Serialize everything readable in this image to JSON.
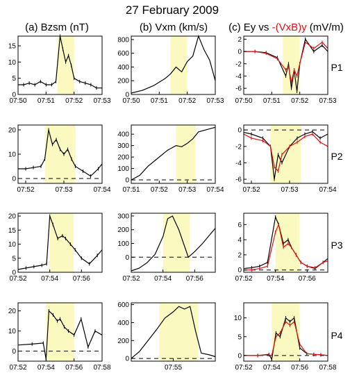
{
  "figure": {
    "title": "27 February 2009",
    "col_titles": [
      {
        "prefix": "(a) Bzsm (nT)",
        "red": "",
        "suffix": ""
      },
      {
        "prefix": "(b) Vxm (km/s)",
        "red": "",
        "suffix": ""
      },
      {
        "prefix": "(c) Ey vs ",
        "red": "-(VxB)y",
        "suffix": " (mV/m)"
      }
    ],
    "row_labels": [
      "P1",
      "P2",
      "P3",
      "P4"
    ],
    "colors": {
      "shade": "#fafac0",
      "ey": "#000000",
      "vxb": "#e01010",
      "axes": "#000000"
    }
  },
  "chart_data": [
    {
      "panel": "a-P1",
      "type": "line",
      "xlim": [
        "07:50",
        "07:53"
      ],
      "xticks": [
        "07:50",
        "07:51",
        "07:52",
        "07:53"
      ],
      "ylim": [
        0,
        18
      ],
      "yticks": [
        0,
        5,
        10,
        15
      ],
      "shade": [
        "07:51.4",
        "07:52.0"
      ],
      "zero_line": false,
      "series": [
        {
          "x": [
            "07:50.0",
            "07:50.2",
            "07:50.4",
            "07:50.6",
            "07:50.8",
            "07:51.0",
            "07:51.2",
            "07:51.35",
            "07:51.5",
            "07:51.6",
            "07:51.7",
            "07:51.8",
            "07:51.9",
            "07:52.0",
            "07:52.2",
            "07:52.4",
            "07:52.6",
            "07:52.8",
            "07:53.0"
          ],
          "y": [
            3,
            3,
            3.5,
            3,
            4,
            3,
            3,
            4,
            18,
            14,
            10,
            12,
            9,
            5,
            4,
            3.5,
            3,
            2,
            2
          ]
        }
      ]
    },
    {
      "panel": "b-P1",
      "type": "line",
      "xlim": [
        "07:50",
        "07:53"
      ],
      "xticks": [
        "07:50",
        "07:51",
        "07:52",
        "07:53"
      ],
      "ylim": [
        0,
        850
      ],
      "yticks": [
        0,
        200,
        400,
        600,
        800
      ],
      "shade": [
        "07:51.4",
        "07:52.0"
      ],
      "zero_line": true,
      "series": [
        {
          "x": [
            "07:50.0",
            "07:50.4",
            "07:50.8",
            "07:51.2",
            "07:51.4",
            "07:51.6",
            "07:51.8",
            "07:52.0",
            "07:52.2",
            "07:52.4",
            "07:52.6",
            "07:52.8",
            "07:53.0"
          ],
          "y": [
            20,
            60,
            130,
            230,
            300,
            400,
            330,
            480,
            560,
            850,
            650,
            500,
            200
          ]
        }
      ]
    },
    {
      "panel": "c-P1",
      "type": "line",
      "xlim": [
        "07:50",
        "07:53"
      ],
      "xticks": [
        "07:50",
        "07:51",
        "07:52",
        "07:53"
      ],
      "ylim": [
        -7,
        2.5
      ],
      "yticks": [
        -6,
        -4,
        -2,
        0,
        2
      ],
      "shade": [
        "07:51.4",
        "07:52.0"
      ],
      "zero_line": false,
      "series": [
        {
          "name": "Ey",
          "x": [
            "07:50.0",
            "07:50.4",
            "07:50.8",
            "07:51.2",
            "07:51.5",
            "07:51.6",
            "07:51.7",
            "07:51.8",
            "07:51.9",
            "07:52.0",
            "07:52.2",
            "07:52.5",
            "07:52.8",
            "07:53.0"
          ],
          "y": [
            0,
            0,
            -0.2,
            -1,
            -4,
            -2,
            -6,
            -3,
            -6.5,
            -2,
            2,
            0,
            1,
            0
          ]
        },
        {
          "name": "-(VxB)y",
          "x": [
            "07:50.0",
            "07:50.4",
            "07:50.8",
            "07:51.2",
            "07:51.5",
            "07:51.6",
            "07:51.7",
            "07:51.8",
            "07:51.9",
            "07:52.0",
            "07:52.2",
            "07:52.5",
            "07:52.8",
            "07:53.0"
          ],
          "y": [
            0,
            0,
            -0.3,
            -1.2,
            -3,
            -2.5,
            -5,
            -3,
            -4,
            -2,
            1.5,
            0.5,
            1.5,
            0.5
          ]
        }
      ]
    },
    {
      "panel": "a-P2",
      "type": "line",
      "xlim": [
        "07:51.8",
        "07:54"
      ],
      "xticks": [
        "07:52",
        "07:53",
        "07:54"
      ],
      "ylim": [
        -2,
        22
      ],
      "yticks": [
        0,
        10,
        20
      ],
      "shade": [
        "07:52.5",
        "07:53.3"
      ],
      "zero_line": true,
      "series": [
        {
          "x": [
            "07:51.8",
            "07:52.0",
            "07:52.2",
            "07:52.4",
            "07:52.5",
            "07:52.6",
            "07:52.7",
            "07:52.8",
            "07:52.9",
            "07:53.0",
            "07:53.1",
            "07:53.2",
            "07:53.3",
            "07:53.5",
            "07:53.7",
            "07:53.9",
            "07:54.0"
          ],
          "y": [
            4,
            4,
            4.5,
            5,
            8,
            20,
            14,
            16,
            12,
            10,
            12,
            8,
            5,
            3,
            1,
            4,
            6
          ]
        }
      ]
    },
    {
      "panel": "b-P2",
      "type": "line",
      "xlim": [
        "07:51",
        "07:54"
      ],
      "xticks": [
        "07:51",
        "07:52",
        "07:53",
        "07:54"
      ],
      "ylim": [
        -30,
        480
      ],
      "yticks": [
        0,
        100,
        200,
        300,
        400
      ],
      "shade": [
        "07:52.6",
        "07:53.3"
      ],
      "zero_line": true,
      "series": [
        {
          "x": [
            "07:51.0",
            "07:51.3",
            "07:51.6",
            "07:52.0",
            "07:52.3",
            "07:52.6",
            "07:52.8",
            "07:53.0",
            "07:53.2",
            "07:53.4",
            "07:53.7",
            "07:54.0"
          ],
          "y": [
            0,
            40,
            120,
            200,
            260,
            300,
            290,
            320,
            360,
            420,
            440,
            460
          ]
        }
      ]
    },
    {
      "panel": "c-P2",
      "type": "line",
      "xlim": [
        "07:51.8",
        "07:54"
      ],
      "xticks": [
        "07:52",
        "07:53",
        "07:54"
      ],
      "ylim": [
        -6.5,
        0.6
      ],
      "yticks": [
        -6,
        -4,
        -2,
        0
      ],
      "shade": [
        "07:52.5",
        "07:53.3"
      ],
      "zero_line": true,
      "series": [
        {
          "name": "Ey",
          "x": [
            "07:51.8",
            "07:52.0",
            "07:52.3",
            "07:52.5",
            "07:52.6",
            "07:52.7",
            "07:52.8",
            "07:53.0",
            "07:53.2",
            "07:53.4",
            "07:53.6",
            "07:53.8",
            "07:54.0"
          ],
          "y": [
            -0.3,
            -0.5,
            -1,
            -2,
            -6,
            -3,
            -4,
            -2,
            -1,
            -0.5,
            -0.2,
            -1,
            -0.5
          ]
        },
        {
          "name": "-(VxB)y",
          "x": [
            "07:51.8",
            "07:52.0",
            "07:52.3",
            "07:52.5",
            "07:52.6",
            "07:52.7",
            "07:52.8",
            "07:53.0",
            "07:53.2",
            "07:53.4",
            "07:53.6",
            "07:53.8",
            "07:54.0"
          ],
          "y": [
            -0.5,
            -1,
            -1.3,
            -2,
            -4.5,
            -5,
            -3,
            -2,
            -1.5,
            -0.8,
            -0.5,
            -1.5,
            -2
          ]
        }
      ]
    },
    {
      "panel": "a-P3",
      "type": "line",
      "xlim": [
        "07:52",
        "07:57.3"
      ],
      "xticks": [
        "07:52",
        "07:54",
        "07:56"
      ],
      "ylim": [
        0,
        21
      ],
      "yticks": [
        0,
        5,
        10,
        15,
        20
      ],
      "shade": [
        "07:54",
        "07:55.5"
      ],
      "zero_line": false,
      "series": [
        {
          "x": [
            "07:52.0",
            "07:52.5",
            "07:53.0",
            "07:53.5",
            "07:53.8",
            "07:54.0",
            "07:54.2",
            "07:54.5",
            "07:54.8",
            "07:55.0",
            "07:55.3",
            "07:55.6",
            "07:56.0",
            "07:56.5",
            "07:57.0",
            "07:57.3"
          ],
          "y": [
            1,
            1.5,
            2,
            2.5,
            3,
            20,
            17,
            12,
            13,
            12,
            10,
            8,
            5,
            3,
            6,
            8
          ]
        }
      ]
    },
    {
      "panel": "b-P3",
      "type": "line",
      "xlim": [
        "07:52",
        "07:57.3"
      ],
      "xticks": [
        "07:52",
        "07:54",
        "07:56"
      ],
      "ylim": [
        -110,
        320
      ],
      "yticks": [
        0,
        100,
        200,
        300
      ],
      "shade": [
        "07:54",
        "07:55.7"
      ],
      "zero_line": true,
      "series": [
        {
          "x": [
            "07:52.0",
            "07:52.5",
            "07:53.0",
            "07:53.5",
            "07:54.0",
            "07:54.3",
            "07:54.6",
            "07:55.0",
            "07:55.3",
            "07:55.6",
            "07:56.0",
            "07:56.5",
            "07:57.0",
            "07:57.3"
          ],
          "y": [
            -100,
            -80,
            -40,
            20,
            150,
            280,
            300,
            200,
            100,
            0,
            40,
            100,
            170,
            210
          ]
        }
      ]
    },
    {
      "panel": "c-P3",
      "type": "line",
      "xlim": [
        "07:52",
        "07:57.3"
      ],
      "xticks": [
        "07:52",
        "07:54",
        "07:56"
      ],
      "ylim": [
        -0.3,
        7.5
      ],
      "yticks": [
        0,
        2,
        4,
        6
      ],
      "shade": [
        "07:54",
        "07:55.5"
      ],
      "zero_line": true,
      "series": [
        {
          "name": "Ey",
          "x": [
            "07:52.0",
            "07:52.5",
            "07:53.0",
            "07:53.5",
            "07:54.0",
            "07:54.2",
            "07:54.5",
            "07:54.8",
            "07:55.0",
            "07:55.3",
            "07:55.6",
            "07:56.0",
            "07:56.5",
            "07:57.0",
            "07:57.3"
          ],
          "y": [
            0.2,
            0.3,
            0.5,
            1,
            7,
            6,
            3.5,
            4,
            3,
            2,
            1,
            0.5,
            0.2,
            1,
            1.5
          ]
        },
        {
          "name": "-(VxB)y",
          "x": [
            "07:52.0",
            "07:52.5",
            "07:53.0",
            "07:53.5",
            "07:54.0",
            "07:54.2",
            "07:54.5",
            "07:54.8",
            "07:55.0",
            "07:55.3",
            "07:55.6",
            "07:56.0",
            "07:56.5",
            "07:57.0",
            "07:57.3"
          ],
          "y": [
            0,
            0,
            0.2,
            0.5,
            5,
            6,
            3,
            3.5,
            3,
            2,
            1,
            0.5,
            0.3,
            1,
            1.2
          ]
        }
      ]
    },
    {
      "panel": "a-P4",
      "type": "line",
      "xlim": [
        "07:52",
        "07:58"
      ],
      "xticks": [
        "07:52",
        "07:54",
        "07:56",
        "07:58"
      ],
      "ylim": [
        -5,
        24
      ],
      "yticks": [
        0,
        10,
        20
      ],
      "shade": [
        "07:54",
        "07:56"
      ],
      "zero_line": true,
      "series": [
        {
          "x": [
            "07:52.0",
            "07:53.0",
            "07:53.8",
            "07:54.0",
            "07:54.2",
            "07:54.5",
            "07:54.8",
            "07:55.0",
            "07:55.3",
            "07:55.6",
            "07:56.0",
            "07:56.5",
            "07:57.0",
            "07:57.5",
            "07:58.0"
          ],
          "y": [
            3,
            3.5,
            4,
            -4,
            20,
            18,
            15,
            16,
            12,
            10,
            8,
            16,
            2,
            10,
            8
          ]
        }
      ]
    },
    {
      "panel": "b-P4",
      "type": "line",
      "xlim": [
        "07:53.5",
        "07:56.5"
      ],
      "xticks": [
        "07:55"
      ],
      "ylim": [
        -30,
        620
      ],
      "yticks": [
        0,
        200,
        400,
        600
      ],
      "shade": [
        "07:54.5",
        "07:55.9"
      ],
      "zero_line": true,
      "series": [
        {
          "x": [
            "07:53.5",
            "07:53.8",
            "07:54.1",
            "07:54.4",
            "07:54.7",
            "07:55.0",
            "07:55.2",
            "07:55.4",
            "07:55.6",
            "07:55.8",
            "07:56.0",
            "07:56.3",
            "07:56.5"
          ],
          "y": [
            0,
            80,
            200,
            320,
            450,
            520,
            580,
            550,
            580,
            300,
            60,
            40,
            20
          ]
        }
      ]
    },
    {
      "panel": "c-P4",
      "type": "line",
      "xlim": [
        "07:52",
        "07:58"
      ],
      "xticks": [
        "07:52",
        "07:54",
        "07:56",
        "07:58"
      ],
      "ylim": [
        -1.5,
        14
      ],
      "yticks": [
        0,
        5,
        10
      ],
      "shade": [
        "07:54",
        "07:56"
      ],
      "zero_line": true,
      "series": [
        {
          "name": "Ey",
          "x": [
            "07:52.0",
            "07:53.0",
            "07:53.8",
            "07:54.0",
            "07:54.3",
            "07:54.6",
            "07:55.0",
            "07:55.3",
            "07:55.6",
            "07:56.0",
            "07:56.5",
            "07:57.0",
            "07:57.5",
            "07:58.0"
          ],
          "y": [
            0,
            0,
            0.3,
            -1,
            6,
            5,
            10,
            9,
            10,
            2,
            0.5,
            0.3,
            0.2,
            0
          ]
        },
        {
          "name": "-(VxB)y",
          "x": [
            "07:52.0",
            "07:53.0",
            "07:53.8",
            "07:54.0",
            "07:54.3",
            "07:54.6",
            "07:55.0",
            "07:55.3",
            "07:55.6",
            "07:56.0",
            "07:56.5",
            "07:57.0",
            "07:57.5",
            "07:58.0"
          ],
          "y": [
            0,
            0,
            0.2,
            0,
            5,
            6,
            9,
            8,
            9,
            3,
            0.5,
            0.3,
            0.2,
            0
          ]
        }
      ]
    }
  ]
}
